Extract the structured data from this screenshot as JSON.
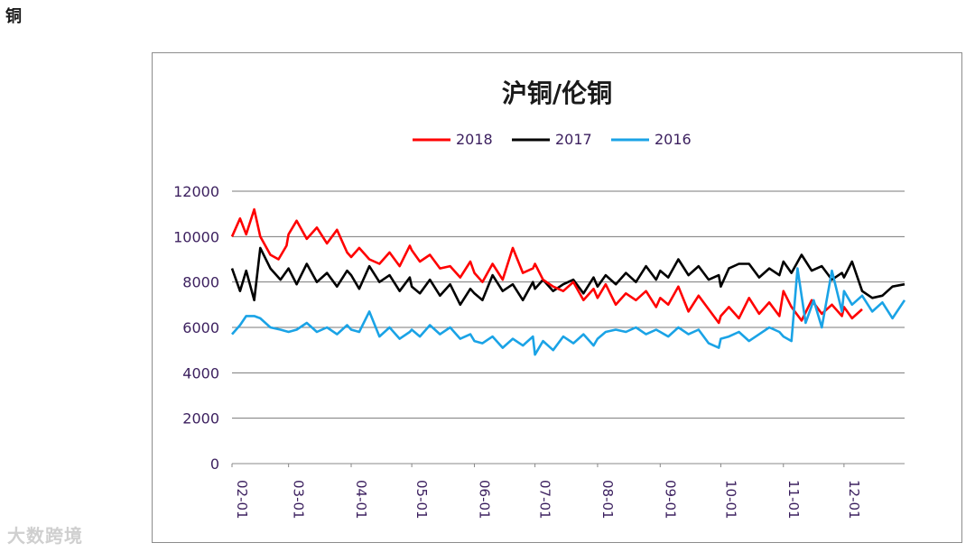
{
  "page": {
    "heading": "铜"
  },
  "watermark": {
    "text": "大数跨境"
  },
  "chart_data": {
    "type": "line",
    "title": "沪铜/伦铜",
    "xlabel": "",
    "ylabel": "",
    "x_tick_labels": [
      "02-01",
      "03-01",
      "04-01",
      "05-01",
      "06-01",
      "07-01",
      "08-01",
      "09-01",
      "10-01",
      "11-01",
      "12-01"
    ],
    "x_days": [
      "02-01",
      "12-31"
    ],
    "y_ticks": [
      0,
      2000,
      4000,
      6000,
      8000,
      10000,
      12000
    ],
    "ylim": [
      0,
      12000
    ],
    "grid": true,
    "legend_position": "top",
    "series": [
      {
        "name": "2018",
        "color": "#ff0000",
        "x": [
          "02-01",
          "02-05",
          "02-08",
          "02-12",
          "02-15",
          "02-20",
          "02-24",
          "02-28",
          "03-01",
          "03-05",
          "03-10",
          "03-15",
          "03-20",
          "03-25",
          "03-30",
          "04-01",
          "04-05",
          "04-10",
          "04-15",
          "04-20",
          "04-25",
          "04-30",
          "05-01",
          "05-05",
          "05-10",
          "05-15",
          "05-20",
          "05-25",
          "05-30",
          "06-01",
          "06-05",
          "06-10",
          "06-15",
          "06-20",
          "06-25",
          "06-30",
          "07-01",
          "07-05",
          "07-10",
          "07-15",
          "07-20",
          "07-25",
          "07-30",
          "08-01",
          "08-05",
          "08-10",
          "08-15",
          "08-20",
          "08-25",
          "08-30",
          "09-01",
          "09-05",
          "09-10",
          "09-15",
          "09-20",
          "09-25",
          "09-30",
          "10-01",
          "10-05",
          "10-10",
          "10-15",
          "10-20",
          "10-25",
          "10-30",
          "11-01",
          "11-05",
          "11-10",
          "11-15",
          "11-20",
          "11-25",
          "11-30",
          "12-01",
          "12-05",
          "12-10"
        ],
        "values": [
          10000,
          10800,
          10100,
          11200,
          10000,
          9200,
          9000,
          9600,
          10100,
          10700,
          9900,
          10400,
          9700,
          10300,
          9300,
          9100,
          9500,
          9000,
          8800,
          9300,
          8700,
          9600,
          9400,
          8900,
          9200,
          8600,
          8700,
          8200,
          8900,
          8400,
          8000,
          8800,
          8100,
          9500,
          8400,
          8600,
          8800,
          8100,
          7800,
          7600,
          8000,
          7200,
          7700,
          7300,
          7900,
          7000,
          7500,
          7200,
          7600,
          6900,
          7300,
          7000,
          7800,
          6700,
          7400,
          6800,
          6200,
          6500,
          6900,
          6400,
          7300,
          6600,
          7100,
          6500,
          7600,
          6900,
          6300,
          7200,
          6600,
          7000,
          6500,
          6900,
          6400,
          6800
        ]
      },
      {
        "name": "2017",
        "color": "#000000",
        "x": [
          "02-01",
          "02-05",
          "02-08",
          "02-12",
          "02-15",
          "02-20",
          "02-25",
          "03-01",
          "03-05",
          "03-10",
          "03-15",
          "03-20",
          "03-25",
          "03-30",
          "04-01",
          "04-05",
          "04-10",
          "04-15",
          "04-20",
          "04-25",
          "04-30",
          "05-01",
          "05-05",
          "05-10",
          "05-15",
          "05-20",
          "05-25",
          "05-30",
          "06-01",
          "06-05",
          "06-10",
          "06-15",
          "06-20",
          "06-25",
          "06-30",
          "07-01",
          "07-05",
          "07-10",
          "07-15",
          "07-20",
          "07-25",
          "07-30",
          "08-01",
          "08-05",
          "08-10",
          "08-15",
          "08-20",
          "08-25",
          "08-30",
          "09-01",
          "09-05",
          "09-10",
          "09-15",
          "09-20",
          "09-25",
          "09-30",
          "10-01",
          "10-05",
          "10-10",
          "10-15",
          "10-20",
          "10-25",
          "10-30",
          "11-01",
          "11-05",
          "11-10",
          "11-15",
          "11-20",
          "11-25",
          "11-30",
          "12-01",
          "12-05",
          "12-10",
          "12-15",
          "12-20",
          "12-25",
          "12-31"
        ],
        "values": [
          8600,
          7600,
          8500,
          7200,
          9500,
          8600,
          8100,
          8600,
          7900,
          8800,
          8000,
          8400,
          7800,
          8500,
          8300,
          7700,
          8700,
          8000,
          8300,
          7600,
          8200,
          7800,
          7500,
          8100,
          7400,
          7900,
          7000,
          7700,
          7500,
          7200,
          8300,
          7600,
          7900,
          7200,
          8000,
          7700,
          8100,
          7600,
          7900,
          8100,
          7500,
          8200,
          7800,
          8300,
          7900,
          8400,
          8000,
          8700,
          8100,
          8500,
          8200,
          9000,
          8300,
          8700,
          8100,
          8300,
          7800,
          8600,
          8800,
          8800,
          8200,
          8600,
          8300,
          8900,
          8400,
          9200,
          8500,
          8700,
          8100,
          8400,
          8200,
          8900,
          7600,
          7300,
          7400,
          7800,
          7900
        ]
      },
      {
        "name": "2016",
        "color": "#1aa3e6",
        "x": [
          "02-01",
          "02-05",
          "02-08",
          "02-12",
          "02-15",
          "02-20",
          "02-25",
          "03-01",
          "03-05",
          "03-10",
          "03-15",
          "03-20",
          "03-25",
          "03-30",
          "04-01",
          "04-05",
          "04-10",
          "04-15",
          "04-20",
          "04-25",
          "04-30",
          "05-01",
          "05-05",
          "05-10",
          "05-15",
          "05-20",
          "05-25",
          "05-30",
          "06-01",
          "06-05",
          "06-10",
          "06-15",
          "06-20",
          "06-25",
          "06-30",
          "07-01",
          "07-05",
          "07-10",
          "07-15",
          "07-20",
          "07-25",
          "07-30",
          "08-01",
          "08-05",
          "08-10",
          "08-15",
          "08-20",
          "08-25",
          "08-30",
          "09-01",
          "09-05",
          "09-10",
          "09-15",
          "09-20",
          "09-25",
          "09-30",
          "10-01",
          "10-05",
          "10-10",
          "10-15",
          "10-20",
          "10-25",
          "10-30",
          "11-01",
          "11-05",
          "11-08",
          "11-12",
          "11-16",
          "11-20",
          "11-25",
          "11-30",
          "12-01",
          "12-05",
          "12-10",
          "12-15",
          "12-20",
          "12-25",
          "12-31"
        ],
        "values": [
          5700,
          6100,
          6500,
          6500,
          6400,
          6000,
          5900,
          5800,
          5900,
          6200,
          5800,
          6000,
          5700,
          6100,
          5900,
          5800,
          6700,
          5600,
          6000,
          5500,
          5800,
          5900,
          5600,
          6100,
          5700,
          6000,
          5500,
          5700,
          5400,
          5300,
          5600,
          5100,
          5500,
          5200,
          5600,
          4800,
          5400,
          5000,
          5600,
          5300,
          5700,
          5200,
          5500,
          5800,
          5900,
          5800,
          6000,
          5700,
          5900,
          5800,
          5600,
          6000,
          5700,
          5900,
          5300,
          5100,
          5500,
          5600,
          5800,
          5400,
          5700,
          6000,
          5800,
          5600,
          5400,
          8600,
          6200,
          7200,
          6000,
          8500,
          6700,
          7600,
          7000,
          7400,
          6700,
          7100,
          6400,
          7200
        ]
      }
    ]
  }
}
